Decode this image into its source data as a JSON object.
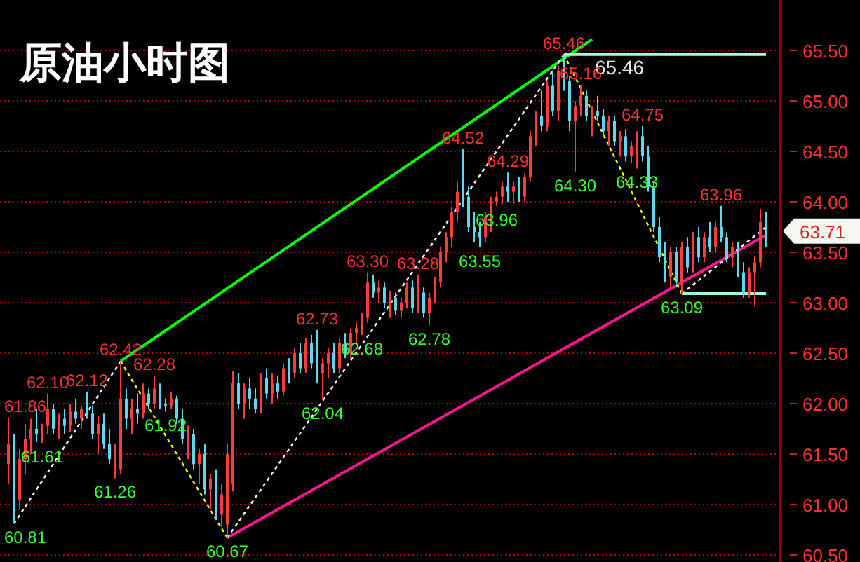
{
  "chart_data": {
    "type": "candlestick",
    "title": "原油小时图",
    "categories": [
      null,
      null,
      null,
      null,
      null,
      null,
      null,
      null,
      null,
      null,
      null,
      null,
      null,
      null,
      null,
      null,
      null,
      null,
      null,
      null,
      null,
      null,
      null,
      null,
      null,
      null,
      null,
      null,
      null,
      null,
      null,
      null,
      null,
      null,
      null,
      null,
      null,
      null,
      null,
      null,
      null,
      null,
      null,
      null,
      null,
      null,
      null,
      null,
      null,
      null,
      null,
      null,
      null,
      null,
      null,
      null,
      null,
      null,
      null,
      null,
      null,
      null,
      null,
      null,
      null,
      null,
      null,
      null,
      null,
      null,
      null,
      null,
      null,
      null,
      null,
      null,
      null,
      null,
      null,
      null,
      null,
      null,
      null,
      null,
      null,
      null,
      null,
      null,
      null,
      null,
      null,
      null,
      null,
      null,
      null,
      null,
      null,
      null,
      null,
      null,
      null,
      null,
      null,
      null,
      null,
      null,
      null,
      null,
      null,
      null,
      null,
      null,
      null,
      null,
      null,
      null,
      null,
      null,
      null,
      null,
      null,
      null,
      null,
      null,
      null,
      null,
      null,
      null,
      null,
      null,
      null,
      null,
      null,
      null,
      null,
      null
    ],
    "ohlc": [
      [
        61.4,
        61.86,
        61.2,
        61.6
      ],
      [
        61.6,
        61.7,
        60.81,
        61.05
      ],
      [
        61.05,
        61.55,
        60.95,
        61.45
      ],
      [
        61.45,
        61.8,
        61.3,
        61.65
      ],
      [
        61.65,
        61.85,
        61.5,
        61.75
      ],
      [
        61.75,
        61.95,
        61.62,
        61.7
      ],
      [
        61.7,
        61.8,
        61.61,
        61.78
      ],
      [
        61.78,
        62.1,
        61.7,
        61.95
      ],
      [
        61.95,
        62.0,
        61.7,
        61.75
      ],
      [
        61.75,
        61.9,
        61.65,
        61.85
      ],
      [
        61.85,
        61.95,
        61.7,
        61.78
      ],
      [
        61.78,
        62.0,
        61.72,
        61.92
      ],
      [
        61.92,
        62.05,
        61.8,
        61.85
      ],
      [
        61.85,
        61.98,
        61.75,
        61.95
      ],
      [
        61.95,
        62.12,
        61.85,
        61.9
      ],
      [
        61.9,
        61.98,
        61.65,
        61.7
      ],
      [
        61.7,
        61.88,
        61.5,
        61.8
      ],
      [
        61.8,
        61.9,
        61.55,
        61.6
      ],
      [
        61.6,
        61.75,
        61.4,
        61.45
      ],
      [
        61.45,
        61.6,
        61.26,
        61.55
      ],
      [
        61.35,
        62.42,
        61.3,
        62.05
      ],
      [
        62.05,
        62.15,
        61.75,
        61.85
      ],
      [
        61.85,
        62.05,
        61.7,
        61.95
      ],
      [
        61.95,
        62.1,
        61.8,
        61.9
      ],
      [
        61.9,
        62.2,
        61.85,
        62.1
      ],
      [
        62.1,
        62.15,
        61.95,
        62.0
      ],
      [
        62.0,
        62.28,
        61.95,
        62.15
      ],
      [
        62.15,
        62.2,
        61.95,
        62.0
      ],
      [
        62.0,
        62.05,
        61.92,
        61.98
      ],
      [
        61.98,
        62.12,
        61.95,
        62.05
      ],
      [
        62.05,
        62.08,
        61.8,
        61.85
      ],
      [
        61.85,
        61.95,
        61.6,
        61.65
      ],
      [
        61.65,
        61.78,
        61.45,
        61.7
      ],
      [
        61.7,
        61.75,
        61.35,
        61.4
      ],
      [
        61.4,
        61.55,
        61.2,
        61.5
      ],
      [
        61.5,
        61.6,
        61.1,
        61.15
      ],
      [
        61.15,
        61.3,
        60.95,
        61.25
      ],
      [
        61.25,
        61.35,
        60.85,
        60.9
      ],
      [
        60.9,
        61.2,
        60.78,
        61.1
      ],
      [
        60.8,
        61.6,
        60.67,
        61.5
      ],
      [
        61.2,
        62.32,
        61.13,
        62.2
      ],
      [
        62.2,
        62.3,
        61.95,
        62.0
      ],
      [
        62.0,
        62.2,
        61.85,
        62.15
      ],
      [
        62.15,
        62.25,
        61.95,
        62.05
      ],
      [
        62.05,
        62.15,
        61.9,
        61.95
      ],
      [
        61.95,
        62.3,
        61.9,
        62.25
      ],
      [
        62.25,
        62.35,
        62.05,
        62.1
      ],
      [
        62.1,
        62.3,
        62.0,
        62.2
      ],
      [
        62.2,
        62.28,
        62.05,
        62.12
      ],
      [
        62.12,
        62.4,
        62.08,
        62.35
      ],
      [
        62.35,
        62.45,
        62.2,
        62.3
      ],
      [
        62.3,
        62.55,
        62.25,
        62.5
      ],
      [
        62.5,
        62.6,
        62.3,
        62.35
      ],
      [
        62.35,
        62.65,
        62.3,
        62.6
      ],
      [
        62.6,
        62.68,
        62.35,
        62.4
      ],
      [
        62.4,
        62.73,
        62.2,
        62.3
      ],
      [
        62.3,
        62.45,
        62.04,
        62.4
      ],
      [
        62.4,
        62.55,
        62.25,
        62.5
      ],
      [
        62.5,
        62.6,
        62.3,
        62.35
      ],
      [
        62.35,
        62.65,
        62.3,
        62.6
      ],
      [
        62.6,
        62.7,
        62.45,
        62.5
      ],
      [
        62.5,
        62.75,
        62.45,
        62.7
      ],
      [
        62.7,
        62.8,
        62.6,
        62.75
      ],
      [
        62.75,
        62.9,
        62.68,
        62.85
      ],
      [
        62.85,
        63.3,
        62.8,
        63.2
      ],
      [
        63.2,
        63.28,
        63.05,
        63.1
      ],
      [
        63.1,
        63.22,
        63.0,
        63.15
      ],
      [
        63.15,
        63.2,
        62.95,
        63.0
      ],
      [
        63.0,
        63.12,
        62.85,
        63.05
      ],
      [
        63.05,
        63.1,
        62.88,
        62.92
      ],
      [
        62.92,
        63.05,
        62.85,
        63.0
      ],
      [
        63.0,
        63.2,
        62.95,
        63.15
      ],
      [
        63.15,
        63.22,
        62.9,
        62.95
      ],
      [
        62.95,
        63.28,
        62.9,
        63.1
      ],
      [
        63.1,
        63.15,
        62.85,
        62.9
      ],
      [
        62.9,
        63.1,
        62.78,
        63.05
      ],
      [
        63.05,
        63.25,
        63.0,
        63.2
      ],
      [
        63.2,
        63.55,
        63.15,
        63.5
      ],
      [
        63.5,
        63.7,
        63.4,
        63.65
      ],
      [
        63.65,
        63.95,
        63.55,
        63.9
      ],
      [
        63.9,
        64.2,
        63.8,
        64.1
      ],
      [
        64.1,
        64.52,
        63.95,
        64.05
      ],
      [
        64.05,
        64.15,
        63.7,
        63.75
      ],
      [
        63.75,
        63.9,
        63.6,
        63.7
      ],
      [
        63.7,
        63.8,
        63.55,
        63.65
      ],
      [
        63.65,
        63.9,
        63.6,
        63.85
      ],
      [
        63.85,
        64.05,
        63.7,
        64.0
      ],
      [
        64.0,
        64.1,
        63.96,
        64.05
      ],
      [
        64.05,
        64.2,
        63.98,
        64.15
      ],
      [
        64.15,
        64.29,
        64.0,
        64.1
      ],
      [
        64.1,
        64.2,
        63.98,
        64.15
      ],
      [
        64.15,
        64.25,
        64.0,
        64.05
      ],
      [
        64.05,
        64.28,
        64.0,
        64.25
      ],
      [
        64.25,
        64.7,
        64.2,
        64.65
      ],
      [
        64.65,
        64.9,
        64.55,
        64.85
      ],
      [
        64.85,
        65.1,
        64.7,
        64.75
      ],
      [
        64.75,
        65.2,
        64.7,
        65.15
      ],
      [
        65.15,
        65.3,
        64.85,
        64.9
      ],
      [
        64.9,
        65.35,
        64.8,
        65.3
      ],
      [
        65.3,
        65.46,
        65.1,
        65.2
      ],
      [
        65.2,
        65.25,
        64.7,
        64.8
      ],
      [
        64.8,
        65.0,
        64.3,
        64.95
      ],
      [
        64.95,
        65.16,
        64.85,
        65.05
      ],
      [
        65.05,
        65.1,
        64.8,
        64.85
      ],
      [
        64.85,
        64.95,
        64.65,
        64.9
      ],
      [
        64.9,
        65.05,
        64.8,
        64.85
      ],
      [
        64.85,
        64.92,
        64.65,
        64.7
      ],
      [
        64.7,
        64.85,
        64.55,
        64.8
      ],
      [
        64.8,
        64.85,
        64.55,
        64.6
      ],
      [
        64.6,
        64.7,
        64.45,
        64.65
      ],
      [
        64.65,
        64.72,
        64.4,
        64.45
      ],
      [
        64.45,
        64.6,
        64.38,
        64.55
      ],
      [
        64.55,
        64.7,
        64.33,
        64.65
      ],
      [
        64.65,
        64.75,
        64.4,
        64.45
      ],
      [
        64.45,
        64.55,
        64.1,
        64.15
      ],
      [
        64.15,
        64.2,
        63.7,
        63.75
      ],
      [
        63.75,
        63.85,
        63.4,
        63.45
      ],
      [
        63.45,
        63.6,
        63.2,
        63.25
      ],
      [
        63.25,
        63.55,
        63.15,
        63.5
      ],
      [
        63.5,
        63.55,
        63.15,
        63.2
      ],
      [
        63.2,
        63.6,
        63.09,
        63.55
      ],
      [
        63.55,
        63.65,
        63.3,
        63.35
      ],
      [
        63.35,
        63.7,
        63.3,
        63.65
      ],
      [
        63.65,
        63.75,
        63.4,
        63.45
      ],
      [
        63.45,
        63.7,
        63.4,
        63.65
      ],
      [
        63.65,
        63.8,
        63.5,
        63.55
      ],
      [
        63.55,
        63.8,
        63.5,
        63.75
      ],
      [
        63.75,
        63.96,
        63.6,
        63.65
      ],
      [
        63.65,
        63.7,
        63.4,
        63.45
      ],
      [
        63.45,
        63.6,
        63.35,
        63.55
      ],
      [
        63.55,
        63.6,
        63.25,
        63.3
      ],
      [
        63.3,
        63.4,
        63.05,
        63.1
      ],
      [
        63.1,
        63.35,
        63.05,
        63.3
      ],
      [
        63.3,
        63.46,
        62.97,
        63.4
      ],
      [
        63.4,
        63.93,
        63.35,
        63.8
      ],
      [
        63.8,
        63.9,
        63.55,
        63.71
      ]
    ],
    "colors": [
      "#ff3c3c",
      "#5cd8f0",
      "#ff3c3c",
      "#ff3c3c",
      "#ff3c3c",
      "#5cd8f0",
      "#ff3c3c",
      "#ff3c3c",
      "#5cd8f0",
      "#ff3c3c",
      "#5cd8f0",
      "#ff3c3c",
      "#5cd8f0",
      "#ff3c3c",
      "#5cd8f0",
      "#5cd8f0",
      "#ff3c3c",
      "#5cd8f0",
      "#5cd8f0",
      "#ff3c3c",
      "#ff3c3c",
      "#5cd8f0",
      "#ff3c3c",
      "#5cd8f0",
      "#ff3c3c",
      "#5cd8f0",
      "#ff3c3c",
      "#5cd8f0",
      "#5cd8f0",
      "#ff3c3c",
      "#5cd8f0",
      "#5cd8f0",
      "#ff3c3c",
      "#5cd8f0",
      "#ff3c3c",
      "#5cd8f0",
      "#ff3c3c",
      "#5cd8f0",
      "#ff3c3c",
      "#ff3c3c",
      "#ff3c3c",
      "#5cd8f0",
      "#ff3c3c",
      "#5cd8f0",
      "#5cd8f0",
      "#ff3c3c",
      "#5cd8f0",
      "#ff3c3c",
      "#5cd8f0",
      "#ff3c3c",
      "#5cd8f0",
      "#ff3c3c",
      "#5cd8f0",
      "#ff3c3c",
      "#5cd8f0",
      "#5cd8f0",
      "#ff3c3c",
      "#ff3c3c",
      "#5cd8f0",
      "#ff3c3c",
      "#5cd8f0",
      "#ff3c3c",
      "#ff3c3c",
      "#ff3c3c",
      "#ff3c3c",
      "#5cd8f0",
      "#ff3c3c",
      "#5cd8f0",
      "#ff3c3c",
      "#5cd8f0",
      "#ff3c3c",
      "#ff3c3c",
      "#5cd8f0",
      "#ff3c3c",
      "#5cd8f0",
      "#ff3c3c",
      "#ff3c3c",
      "#ff3c3c",
      "#ff3c3c",
      "#ff3c3c",
      "#ff3c3c",
      "#5cd8f0",
      "#5cd8f0",
      "#5cd8f0",
      "#5cd8f0",
      "#ff3c3c",
      "#ff3c3c",
      "#ff3c3c",
      "#ff3c3c",
      "#5cd8f0",
      "#ff3c3c",
      "#5cd8f0",
      "#ff3c3c",
      "#ff3c3c",
      "#ff3c3c",
      "#5cd8f0",
      "#ff3c3c",
      "#5cd8f0",
      "#ff3c3c",
      "#5cd8f0",
      "#5cd8f0",
      "#ff3c3c",
      "#ff3c3c",
      "#5cd8f0",
      "#ff3c3c",
      "#5cd8f0",
      "#5cd8f0",
      "#ff3c3c",
      "#5cd8f0",
      "#ff3c3c",
      "#5cd8f0",
      "#ff3c3c",
      "#ff3c3c",
      "#5cd8f0",
      "#5cd8f0",
      "#5cd8f0",
      "#5cd8f0",
      "#5cd8f0",
      "#ff3c3c",
      "#5cd8f0",
      "#ff3c3c",
      "#5cd8f0",
      "#ff3c3c",
      "#5cd8f0",
      "#ff3c3c",
      "#5cd8f0",
      "#ff3c3c",
      "#5cd8f0",
      "#5cd8f0",
      "#ff3c3c",
      "#5cd8f0",
      "#5cd8f0",
      "#ff3c3c",
      "#ff3c3c",
      "#ff3c3c",
      "#5cd8f0"
    ],
    "value_labels": [
      "61.86",
      "60.81",
      null,
      null,
      null,
      null,
      "61.61",
      "62.10",
      null,
      null,
      null,
      null,
      null,
      null,
      "62.12",
      null,
      null,
      null,
      null,
      "61.26",
      "62.42",
      null,
      null,
      null,
      null,
      null,
      "62.28",
      null,
      "61.92",
      null,
      null,
      null,
      null,
      null,
      null,
      null,
      null,
      null,
      null,
      "60.67",
      null,
      null,
      null,
      null,
      null,
      null,
      null,
      null,
      null,
      null,
      null,
      null,
      null,
      null,
      null,
      "62.73",
      "62.04",
      null,
      null,
      null,
      null,
      null,
      null,
      "62.68",
      "63.30",
      null,
      null,
      null,
      null,
      null,
      null,
      null,
      null,
      "63.28",
      null,
      "62.78",
      null,
      null,
      null,
      null,
      null,
      "64.52",
      null,
      null,
      "63.55",
      null,
      null,
      "63.96",
      null,
      "64.29",
      null,
      null,
      null,
      null,
      null,
      null,
      null,
      null,
      null,
      "65.46",
      null,
      "64.30",
      "65.16",
      null,
      null,
      null,
      null,
      null,
      null,
      null,
      null,
      null,
      "64.33",
      "64.75",
      null,
      null,
      null,
      null,
      null,
      null,
      "63.09",
      null,
      null,
      null,
      null,
      null,
      null,
      "63.96",
      null,
      null,
      null,
      null,
      null,
      null,
      null,
      null
    ],
    "series": [
      {
        "type": "line",
        "color": "#ffffff",
        "line_style": "dotted",
        "values": [
          null,
          60.81,
          null,
          null,
          null,
          null,
          null,
          null,
          null,
          null,
          null,
          null,
          null,
          null,
          null,
          null,
          null,
          null,
          null,
          null,
          62.42,
          null,
          null,
          null,
          null,
          null,
          null,
          null,
          null,
          null,
          null,
          null,
          null,
          null,
          null,
          null,
          null,
          null,
          null,
          null,
          null,
          null,
          null,
          null,
          null,
          null,
          null,
          null,
          null,
          null,
          null,
          null,
          null,
          null,
          null,
          null,
          null,
          null,
          null,
          null,
          null,
          null,
          null,
          null,
          null,
          null,
          null,
          null,
          null,
          null,
          null,
          null,
          null,
          null,
          null,
          null,
          null,
          null,
          null,
          null,
          null,
          null,
          null,
          null,
          null,
          null,
          null,
          null,
          null,
          null,
          null,
          null,
          null,
          null,
          null,
          null,
          null,
          null,
          null,
          null,
          null,
          null,
          null,
          null,
          null,
          null,
          null,
          null,
          null,
          null,
          null,
          null,
          null,
          null,
          null,
          null,
          null,
          null,
          null,
          null,
          null,
          null,
          null,
          null,
          null,
          null,
          null,
          null,
          null,
          null,
          null,
          null,
          null,
          null,
          null,
          null
        ]
      },
      {
        "type": "line",
        "color": "#ffff00",
        "line_style": "dotted",
        "values": [
          null,
          null,
          null,
          null,
          null,
          null,
          null,
          null,
          null,
          null,
          null,
          null,
          null,
          null,
          null,
          null,
          null,
          null,
          null,
          null,
          62.42,
          null,
          null,
          null,
          null,
          null,
          null,
          null,
          null,
          null,
          null,
          null,
          null,
          null,
          null,
          null,
          null,
          null,
          null,
          60.67,
          null,
          null,
          null,
          null,
          null,
          null,
          null,
          null,
          null,
          null,
          null,
          null,
          null,
          null,
          null,
          null,
          null,
          null,
          null,
          null,
          null,
          null,
          null,
          null,
          null,
          null,
          null,
          null,
          null,
          null,
          null,
          null,
          null,
          null,
          null,
          null,
          null,
          null,
          null,
          null,
          null,
          null,
          null,
          null,
          null,
          null,
          null,
          null,
          null,
          null,
          null,
          null,
          null,
          null,
          null,
          null,
          null,
          null,
          null,
          null,
          null,
          null,
          null,
          null,
          null,
          null,
          null,
          null,
          null,
          null,
          null,
          null,
          null,
          null,
          null,
          null,
          null,
          null,
          null,
          null,
          null,
          null,
          null,
          null,
          null,
          null,
          null,
          null,
          null,
          null,
          null,
          null,
          null,
          null,
          null,
          null
        ]
      },
      {
        "type": "line",
        "color": "#ffffff",
        "line_style": "dotted",
        "values": [
          null,
          null,
          null,
          null,
          null,
          null,
          null,
          null,
          null,
          null,
          null,
          null,
          null,
          null,
          null,
          null,
          null,
          null,
          null,
          null,
          null,
          null,
          null,
          null,
          null,
          null,
          null,
          null,
          null,
          null,
          null,
          null,
          null,
          null,
          null,
          null,
          null,
          null,
          null,
          60.67,
          null,
          null,
          null,
          null,
          null,
          null,
          null,
          null,
          null,
          null,
          null,
          null,
          null,
          null,
          null,
          null,
          null,
          null,
          null,
          null,
          null,
          null,
          null,
          null,
          null,
          null,
          null,
          null,
          null,
          null,
          null,
          null,
          null,
          null,
          null,
          null,
          null,
          null,
          null,
          null,
          null,
          null,
          null,
          null,
          null,
          null,
          null,
          null,
          null,
          null,
          null,
          null,
          null,
          null,
          null,
          null,
          null,
          null,
          null,
          65.46,
          null,
          null,
          null,
          null,
          null,
          null,
          null,
          null,
          null,
          null,
          null,
          null,
          null,
          null,
          null,
          null,
          null,
          null,
          null,
          null,
          null,
          null,
          null,
          null,
          null,
          null,
          null,
          null,
          null,
          null,
          null,
          null,
          null,
          null,
          null,
          null
        ]
      },
      {
        "type": "line",
        "color": "#ffff00",
        "line_style": "dotted",
        "values": [
          null,
          null,
          null,
          null,
          null,
          null,
          null,
          null,
          null,
          null,
          null,
          null,
          null,
          null,
          null,
          null,
          null,
          null,
          null,
          null,
          null,
          null,
          null,
          null,
          null,
          null,
          null,
          null,
          null,
          null,
          null,
          null,
          null,
          null,
          null,
          null,
          null,
          null,
          null,
          null,
          null,
          null,
          null,
          null,
          null,
          null,
          null,
          null,
          null,
          null,
          null,
          null,
          null,
          null,
          null,
          null,
          null,
          null,
          null,
          null,
          null,
          null,
          null,
          null,
          null,
          null,
          null,
          null,
          null,
          null,
          null,
          null,
          null,
          null,
          null,
          null,
          null,
          null,
          null,
          null,
          null,
          null,
          null,
          null,
          null,
          null,
          null,
          null,
          null,
          null,
          null,
          null,
          null,
          null,
          null,
          null,
          null,
          null,
          null,
          65.46,
          null,
          null,
          null,
          null,
          null,
          null,
          null,
          null,
          null,
          null,
          null,
          null,
          null,
          null,
          null,
          null,
          null,
          null,
          null,
          null,
          63.09,
          null,
          null,
          null,
          null,
          null,
          null,
          null,
          null,
          null,
          null,
          null,
          null,
          null,
          null,
          null
        ]
      },
      {
        "type": "line",
        "color": "#ffffff",
        "line_style": "dotted",
        "values": [
          null,
          null,
          null,
          null,
          null,
          null,
          null,
          null,
          null,
          null,
          null,
          null,
          null,
          null,
          null,
          null,
          null,
          null,
          null,
          null,
          null,
          null,
          null,
          null,
          null,
          null,
          null,
          null,
          null,
          null,
          null,
          null,
          null,
          null,
          null,
          null,
          null,
          null,
          null,
          null,
          null,
          null,
          null,
          null,
          null,
          null,
          null,
          null,
          null,
          null,
          null,
          null,
          null,
          null,
          null,
          null,
          null,
          null,
          null,
          null,
          null,
          null,
          null,
          null,
          null,
          null,
          null,
          null,
          null,
          null,
          null,
          null,
          null,
          null,
          null,
          null,
          null,
          null,
          null,
          null,
          null,
          null,
          null,
          null,
          null,
          null,
          null,
          null,
          null,
          null,
          null,
          null,
          null,
          null,
          null,
          null,
          null,
          null,
          null,
          null,
          null,
          null,
          null,
          null,
          null,
          null,
          null,
          null,
          null,
          null,
          null,
          null,
          null,
          null,
          null,
          null,
          null,
          null,
          null,
          null,
          63.09,
          null,
          null,
          null,
          null,
          null,
          null,
          null,
          null,
          null,
          null,
          null,
          null,
          null,
          null,
          63.75
        ]
      },
      {
        "type": "line",
        "color": "#00ff00",
        "line_style": "solid",
        "values": [
          null,
          null,
          null,
          null,
          null,
          null,
          null,
          null,
          null,
          null,
          null,
          null,
          null,
          null,
          null,
          null,
          null,
          null,
          null,
          null,
          62.42,
          null,
          null,
          null,
          null,
          null,
          null,
          null,
          null,
          null,
          null,
          null,
          null,
          null,
          null,
          null,
          null,
          null,
          null,
          null,
          null,
          null,
          null,
          null,
          null,
          null,
          null,
          null,
          null,
          null,
          null,
          null,
          null,
          null,
          null,
          null,
          null,
          null,
          null,
          null,
          null,
          null,
          null,
          null,
          null,
          null,
          null,
          null,
          null,
          null,
          null,
          null,
          null,
          null,
          null,
          null,
          null,
          null,
          null,
          null,
          null,
          null,
          null,
          null,
          null,
          null,
          null,
          null,
          null,
          null,
          null,
          null,
          null,
          null,
          null,
          null,
          null,
          null,
          null,
          null,
          null,
          null,
          null,
          null,
          65.61,
          null,
          null,
          null,
          null,
          null,
          null,
          null,
          null,
          null,
          null,
          null,
          null,
          null,
          null,
          null,
          null,
          null,
          null,
          null,
          null,
          null,
          null,
          null,
          null,
          null,
          null,
          null,
          null,
          null,
          null,
          null
        ]
      },
      {
        "type": "line",
        "color": "#ff1493",
        "line_style": "solid",
        "values": [
          null,
          null,
          null,
          null,
          null,
          null,
          null,
          null,
          null,
          null,
          null,
          null,
          null,
          null,
          null,
          null,
          null,
          null,
          null,
          null,
          null,
          null,
          null,
          null,
          null,
          null,
          null,
          null,
          null,
          null,
          null,
          null,
          null,
          null,
          null,
          null,
          null,
          null,
          null,
          60.67,
          null,
          null,
          null,
          null,
          null,
          null,
          null,
          null,
          null,
          null,
          null,
          null,
          null,
          null,
          null,
          null,
          null,
          null,
          null,
          null,
          null,
          null,
          null,
          null,
          null,
          null,
          null,
          null,
          null,
          null,
          null,
          null,
          null,
          null,
          null,
          null,
          null,
          null,
          null,
          null,
          null,
          null,
          null,
          null,
          null,
          null,
          null,
          null,
          null,
          null,
          null,
          null,
          null,
          null,
          null,
          null,
          null,
          null,
          null,
          null,
          null,
          null,
          null,
          null,
          null,
          null,
          null,
          null,
          null,
          null,
          null,
          null,
          null,
          null,
          null,
          null,
          null,
          null,
          null,
          null,
          null,
          null,
          null,
          null,
          null,
          null,
          null,
          null,
          null,
          null,
          null,
          null,
          null,
          null,
          null,
          63.67
        ]
      },
      {
        "type": "line",
        "name": "65.46",
        "color": "#a0ffe0",
        "line_style": "solid",
        "values": [
          null,
          null,
          null,
          null,
          null,
          null,
          null,
          null,
          null,
          null,
          null,
          null,
          null,
          null,
          null,
          null,
          null,
          null,
          null,
          null,
          null,
          null,
          null,
          null,
          null,
          null,
          null,
          null,
          null,
          null,
          null,
          null,
          null,
          null,
          null,
          null,
          null,
          null,
          null,
          null,
          null,
          null,
          null,
          null,
          null,
          null,
          null,
          null,
          null,
          null,
          null,
          null,
          null,
          null,
          null,
          null,
          null,
          null,
          null,
          null,
          null,
          null,
          null,
          null,
          null,
          null,
          null,
          null,
          null,
          null,
          null,
          null,
          null,
          null,
          null,
          null,
          null,
          null,
          null,
          null,
          null,
          null,
          null,
          null,
          null,
          null,
          null,
          null,
          null,
          null,
          null,
          null,
          null,
          null,
          null,
          null,
          null,
          null,
          null,
          65.46,
          null,
          null,
          null,
          null,
          null,
          null,
          null,
          null,
          null,
          null,
          null,
          null,
          null,
          null,
          null,
          null,
          null,
          null,
          null,
          null,
          null,
          null,
          null,
          null,
          null,
          null,
          null,
          null,
          null,
          null,
          null,
          null,
          null,
          null,
          null,
          65.46
        ]
      },
      {
        "type": "line",
        "color": "#a0ffe0",
        "line_style": "solid",
        "values": [
          null,
          null,
          null,
          null,
          null,
          null,
          null,
          null,
          null,
          null,
          null,
          null,
          null,
          null,
          null,
          null,
          null,
          null,
          null,
          null,
          null,
          null,
          null,
          null,
          null,
          null,
          null,
          null,
          null,
          null,
          null,
          null,
          null,
          null,
          null,
          null,
          null,
          null,
          null,
          null,
          null,
          null,
          null,
          null,
          null,
          null,
          null,
          null,
          null,
          null,
          null,
          null,
          null,
          null,
          null,
          null,
          null,
          null,
          null,
          null,
          null,
          null,
          null,
          null,
          null,
          null,
          null,
          null,
          null,
          null,
          null,
          null,
          null,
          null,
          null,
          null,
          null,
          null,
          null,
          null,
          null,
          null,
          null,
          null,
          null,
          null,
          null,
          null,
          null,
          null,
          null,
          null,
          null,
          null,
          null,
          null,
          null,
          null,
          null,
          null,
          null,
          null,
          null,
          null,
          null,
          null,
          null,
          null,
          null,
          null,
          null,
          null,
          null,
          null,
          null,
          null,
          null,
          null,
          null,
          null,
          63.09,
          null,
          null,
          null,
          null,
          null,
          null,
          null,
          null,
          null,
          null,
          null,
          null,
          null,
          null,
          63.09
        ]
      }
    ],
    "ylim": [
      60.43,
      66.0
    ],
    "yticks": [
      {
        "value": 60.5,
        "label": "60.50"
      },
      {
        "value": 61,
        "label": "61.00"
      },
      {
        "value": 61.5,
        "label": "61.50"
      },
      {
        "value": 62,
        "label": "62.00"
      },
      {
        "value": 62.5,
        "label": "62.50"
      },
      {
        "value": 63,
        "label": "63.00"
      },
      {
        "value": 63.5,
        "label": "63.50"
      },
      {
        "value": 64,
        "label": "64.00"
      },
      {
        "value": 64.5,
        "label": "64.50"
      },
      {
        "value": 65,
        "label": "65.00"
      },
      {
        "value": 65.5,
        "label": "65.50"
      }
    ],
    "grid": "y",
    "annotations": [
      "63.71"
    ]
  }
}
